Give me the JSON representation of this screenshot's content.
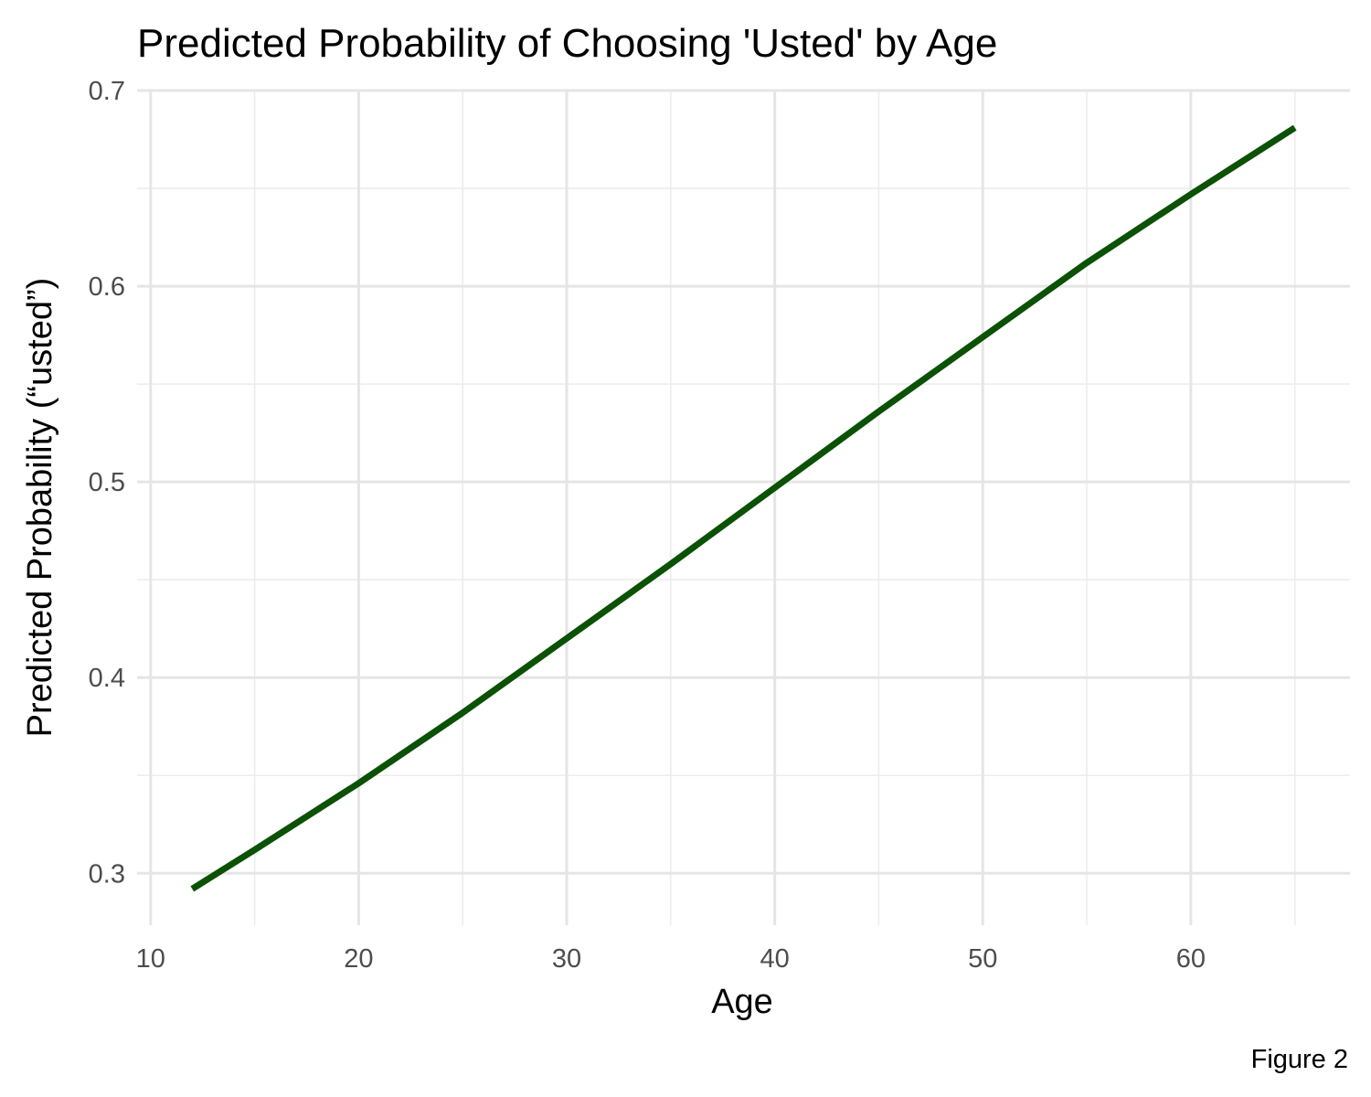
{
  "chart_data": {
    "type": "line",
    "title": "Predicted Probability of Choosing 'Usted' by Age",
    "xlabel": "Age",
    "ylabel": "Predicted Probability (“usted”)",
    "caption": "Figure 2",
    "xlim": [
      9.35,
      67.65
    ],
    "ylim": [
      0.2735,
      0.7
    ],
    "x_ticks": [
      10,
      20,
      30,
      40,
      50,
      60
    ],
    "x_minor_ticks": [
      15,
      25,
      35,
      45,
      55,
      65
    ],
    "y_ticks": [
      0.3,
      0.4,
      0.5,
      0.6,
      0.7
    ],
    "y_minor_ticks": [
      0.35,
      0.45,
      0.55,
      0.65
    ],
    "x_tick_labels": [
      "10",
      "20",
      "30",
      "40",
      "50",
      "60"
    ],
    "y_tick_labels": [
      "0.3",
      "0.4",
      "0.5",
      "0.6",
      "0.7"
    ],
    "grid": true,
    "legend": "none",
    "series": [
      {
        "color": "#0b5106",
        "x": [
          12,
          15,
          20,
          25,
          30,
          35,
          40,
          45,
          50,
          55,
          60,
          65
        ],
        "y": [
          0.292,
          0.312,
          0.346,
          0.382,
          0.42,
          0.458,
          0.497,
          0.536,
          0.574,
          0.612,
          0.647,
          0.681
        ]
      }
    ]
  }
}
